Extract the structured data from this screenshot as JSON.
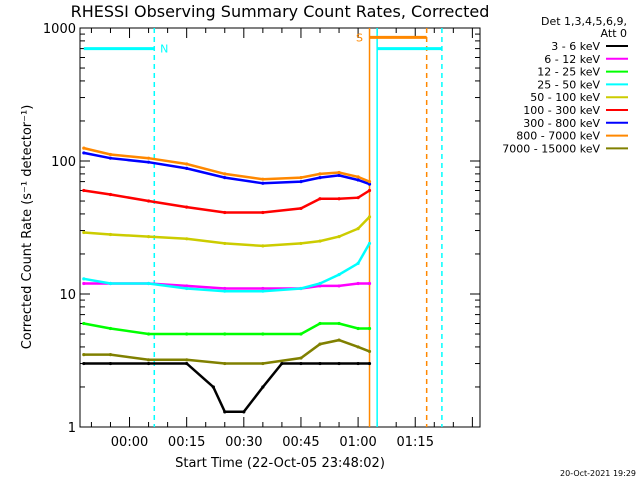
{
  "chart_data": {
    "type": "line",
    "title": "RHESSI Observing Summary Count Rates, Corrected",
    "xlabel": "Start Time (22-Oct-05 23:48:02)",
    "ylabel": "Corrected Count Rate (s⁻¹ detector⁻¹)",
    "ylog": true,
    "ylim": [
      1,
      1000
    ],
    "xlim_minutes": [
      -13,
      92
    ],
    "xticks": [
      {
        "label": "00:00",
        "minutes": 0
      },
      {
        "label": "00:15",
        "minutes": 15
      },
      {
        "label": "00:30",
        "minutes": 30
      },
      {
        "label": "00:45",
        "minutes": 45
      },
      {
        "label": "01:00",
        "minutes": 60
      },
      {
        "label": "01:15",
        "minutes": 75
      }
    ],
    "yticks": [
      {
        "label": "1",
        "value": 1
      },
      {
        "label": "10",
        "value": 10
      },
      {
        "label": "100",
        "value": 100
      },
      {
        "label": "1000",
        "value": 1000
      }
    ],
    "legend_header": [
      "Det 1,3,4,5,6,9,",
      "Att 0"
    ],
    "legend_position": "right",
    "footer_date": "20-Oct-2021 19:29",
    "series": [
      {
        "name": "3 - 6 keV",
        "color": "#000000",
        "x": [
          -12,
          -5,
          5,
          15,
          22,
          25,
          30,
          35,
          40,
          45,
          50,
          55,
          60,
          63
        ],
        "y": [
          3,
          3,
          3,
          3,
          2,
          1.3,
          1.3,
          2,
          3,
          3,
          3,
          3,
          3,
          3
        ]
      },
      {
        "name": "6 - 12 keV",
        "color": "#ff00ff",
        "x": [
          -12,
          -5,
          5,
          15,
          25,
          35,
          45,
          50,
          55,
          60,
          63
        ],
        "y": [
          12,
          12,
          12,
          11.5,
          11,
          11,
          11,
          11.5,
          11.5,
          12,
          12
        ]
      },
      {
        "name": "12 - 25 keV",
        "color": "#00ff00",
        "x": [
          -12,
          -5,
          5,
          15,
          25,
          35,
          45,
          50,
          55,
          60,
          63
        ],
        "y": [
          6,
          5.5,
          5,
          5,
          5,
          5,
          5,
          6,
          6,
          5.5,
          5.5
        ]
      },
      {
        "name": "25 - 50 keV",
        "color": "#00ffff",
        "x": [
          -12,
          -5,
          5,
          15,
          25,
          35,
          45,
          50,
          55,
          60,
          63
        ],
        "y": [
          13,
          12,
          12,
          11,
          10.5,
          10.5,
          11,
          12,
          14,
          17,
          24
        ]
      },
      {
        "name": "50 - 100 keV",
        "color": "#cccc00",
        "x": [
          -12,
          -5,
          5,
          15,
          25,
          35,
          45,
          50,
          55,
          60,
          63
        ],
        "y": [
          29,
          28,
          27,
          26,
          24,
          23,
          24,
          25,
          27,
          31,
          38
        ]
      },
      {
        "name": "100 - 300 keV",
        "color": "#ff0000",
        "x": [
          -12,
          -5,
          5,
          15,
          25,
          35,
          45,
          50,
          55,
          60,
          63
        ],
        "y": [
          60,
          56,
          50,
          45,
          41,
          41,
          44,
          52,
          52,
          53,
          60
        ]
      },
      {
        "name": "300 - 800 keV",
        "color": "#0000ff",
        "x": [
          -12,
          -5,
          5,
          15,
          25,
          35,
          45,
          50,
          55,
          60,
          63
        ],
        "y": [
          115,
          105,
          98,
          88,
          75,
          68,
          70,
          75,
          78,
          72,
          67
        ]
      },
      {
        "name": "800 - 7000 keV",
        "color": "#ff8800",
        "x": [
          -12,
          -5,
          5,
          15,
          25,
          35,
          45,
          50,
          55,
          60,
          63
        ],
        "y": [
          125,
          112,
          105,
          95,
          80,
          73,
          75,
          80,
          82,
          76,
          70
        ]
      },
      {
        "name": "7000 - 15000 keV",
        "color": "#808000",
        "x": [
          -12,
          -5,
          5,
          15,
          25,
          35,
          45,
          50,
          55,
          60,
          63
        ],
        "y": [
          3.5,
          3.5,
          3.2,
          3.2,
          3,
          3,
          3.3,
          4.2,
          4.5,
          4,
          3.7
        ]
      }
    ],
    "annotations": [
      {
        "label": "N",
        "color": "#00ffff",
        "bar_from": -12,
        "bar_to": 6.5,
        "level": 700
      },
      {
        "label": "S",
        "color": "#ff8800",
        "bar_from": 63,
        "bar_to": 78,
        "level": 850
      },
      {
        "label": "",
        "color": "#00ffff",
        "bar_from": 65,
        "bar_to": 82,
        "level": 700
      }
    ],
    "vertical_markers": [
      {
        "minutes": 6.5,
        "color": "#00ffff",
        "style": "dashed"
      },
      {
        "minutes": 63,
        "color": "#ff8800",
        "style": "solid"
      },
      {
        "minutes": 65,
        "color": "#00ffff",
        "style": "solid"
      },
      {
        "minutes": 78,
        "color": "#ff8800",
        "style": "dashed"
      },
      {
        "minutes": 82,
        "color": "#00ffff",
        "style": "dashed"
      }
    ]
  }
}
